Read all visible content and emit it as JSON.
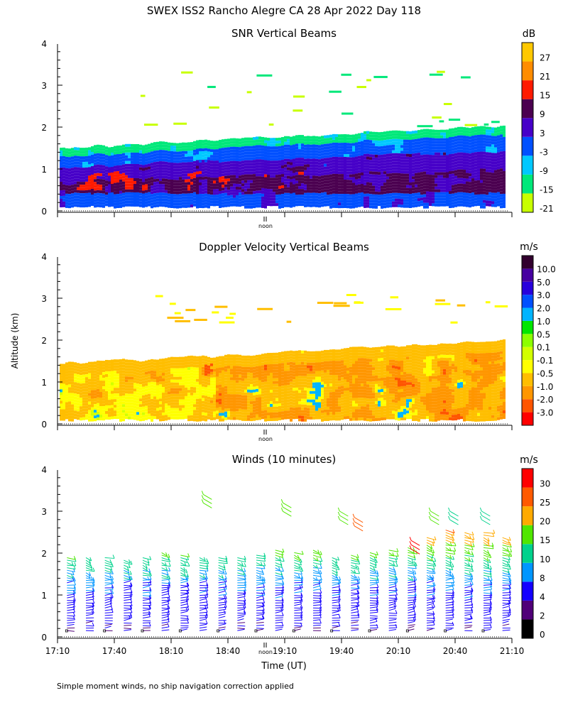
{
  "figure": {
    "title": "SWEX ISS2 Rancho Alegre CA  28 Apr 2022 Day 118",
    "ylabel": "Altitude (km)",
    "xlabel": "Time (UT)",
    "noon_label": "noon",
    "footnote": "Simple moment winds, no ship navigation correction applied"
  },
  "chart_data": [
    {
      "type": "heatmap",
      "title": "SNR Vertical Beams",
      "ylim": [
        0,
        4
      ],
      "yticks": [
        "0",
        "1",
        "2",
        "3",
        "4"
      ],
      "xlim_hours": [
        17.1667,
        21.1667
      ],
      "colorbar": {
        "unit": "dB",
        "colors": [
          "#c8ff00",
          "#00e87a",
          "#00c8ff",
          "#0050ff",
          "#4600c8",
          "#4b0050",
          "#ff1a00",
          "#ff8c00",
          "#ffc800"
        ],
        "labels": [
          "-21",
          "-15",
          "-9",
          "-3",
          "3",
          "9",
          "15",
          "21",
          "27"
        ]
      },
      "cloud": {
        "data_top_km": 1.5,
        "data_top_end_km": 2.05,
        "bottom_km": 0.12,
        "sparse_echoes_km": [
          2.3,
          3.05
        ]
      }
    },
    {
      "type": "heatmap",
      "title": "Doppler Velocity Vertical Beams",
      "ylim": [
        0,
        4
      ],
      "yticks": [
        "0",
        "1",
        "2",
        "3",
        "4"
      ],
      "xlim_hours": [
        17.1667,
        21.1667
      ],
      "colorbar": {
        "unit": "m/s",
        "colors": [
          "#ff0000",
          "#ff5500",
          "#ff9600",
          "#ffbe00",
          "#ffff00",
          "#d2ff00",
          "#8cff00",
          "#00e600",
          "#00b4ff",
          "#0050ff",
          "#2800dc",
          "#4600a0",
          "#32002e"
        ],
        "labels": [
          "-3.0",
          "-2.0",
          "-1.0",
          "-0.5",
          "-0.1",
          "0.1",
          "0.5",
          "1.0",
          "2.0",
          "3.0",
          "5.0",
          "10.0"
        ]
      },
      "cloud": {
        "data_top_km": 1.45,
        "data_top_end_km": 2.0,
        "bottom_km": 0.12,
        "sparse_echoes_km": [
          2.7,
          2.85
        ]
      }
    },
    {
      "type": "scatter",
      "title": "Winds (10 minutes)",
      "ylim": [
        0,
        4
      ],
      "yticks": [
        "0",
        "1",
        "2",
        "3",
        "4"
      ],
      "xlim_hours": [
        17.1667,
        21.1667
      ],
      "xticks": [
        "17:10",
        "17:40",
        "18:10",
        "18:40",
        "19:10",
        "19:40",
        "20:10",
        "20:40",
        "21:10"
      ],
      "colorbar": {
        "unit": "m/s",
        "colors": [
          "#000000",
          "#500078",
          "#1400ff",
          "#0096ff",
          "#00d28c",
          "#50e600",
          "#ffaa00",
          "#ff5a00",
          "#ff0000"
        ],
        "labels": [
          "0",
          "2",
          "4",
          "8",
          "10",
          "15",
          "20",
          "25",
          "30"
        ]
      },
      "profile_interval_minutes": 10,
      "profile_tops_km": [
        1.95,
        1.9,
        1.9,
        1.85,
        1.9,
        2.05,
        2.0,
        1.95,
        1.95,
        1.9,
        2.0,
        2.1,
        2.05,
        2.1,
        1.9,
        2.0,
        2.05,
        2.1,
        2.15,
        2.4,
        2.6,
        2.5,
        2.5,
        2.4,
        2.2
      ],
      "isolated_barbs": [
        {
          "time_h": 18.45,
          "alt_km": 3.4,
          "speed_ms": 17
        },
        {
          "time_h": 19.15,
          "alt_km": 3.2,
          "speed_ms": 16
        },
        {
          "time_h": 19.65,
          "alt_km": 3.0,
          "speed_ms": 18
        },
        {
          "time_h": 19.78,
          "alt_km": 2.85,
          "speed_ms": 29
        },
        {
          "time_h": 20.28,
          "alt_km": 2.3,
          "speed_ms": 30
        },
        {
          "time_h": 20.45,
          "alt_km": 3.0,
          "speed_ms": 17
        },
        {
          "time_h": 20.62,
          "alt_km": 3.0,
          "speed_ms": 14
        },
        {
          "time_h": 20.9,
          "alt_km": 3.0,
          "speed_ms": 13
        }
      ]
    }
  ]
}
